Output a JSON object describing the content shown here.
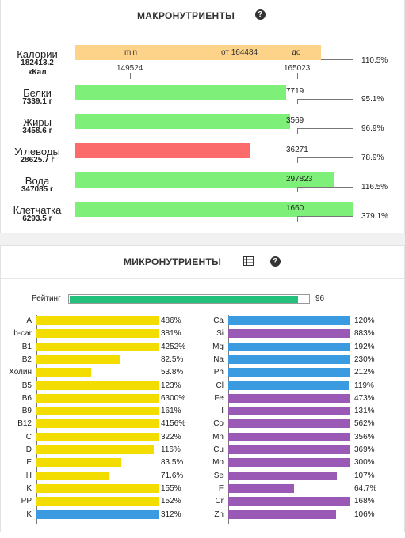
{
  "macro": {
    "title": "МАКРОНУТРИЕНТЫ",
    "calories": {
      "name": "Калории",
      "amount": "182413.2",
      "unit": "кКал",
      "bar_min_label": "min",
      "bar_from_label": "от 164484",
      "bar_to_label": "до",
      "tick_left": "149524",
      "tick_right": "165023",
      "percent": "110.5%",
      "color": "#fdd38a"
    },
    "rows": [
      {
        "name": "Белки",
        "amount": "7339.1 г",
        "target": "7719",
        "percent": "95.1%",
        "fill": 0.951,
        "color": "#7ef07a"
      },
      {
        "name": "Жиры",
        "amount": "3458.6 г",
        "target": "3569",
        "percent": "96.9%",
        "fill": 0.969,
        "color": "#7ef07a"
      },
      {
        "name": "Углеводы",
        "amount": "28625.7 г",
        "target": "36271",
        "percent": "78.9%",
        "fill": 0.789,
        "color": "#fb6b6b"
      },
      {
        "name": "Вода",
        "amount": "347085 г",
        "target": "297823",
        "percent": "116.5%",
        "fill": 1.165,
        "color": "#7ef07a"
      },
      {
        "name": "Клетчатка",
        "amount": "6293.5 г",
        "target": "1660",
        "percent": "379.1%",
        "fill": 3.791,
        "color": "#7ef07a"
      }
    ]
  },
  "micro": {
    "title": "МИКРОНУТРИЕНТЫ",
    "rating": {
      "label": "Рейтинг",
      "value": "96",
      "fill": 0.96,
      "color": "#22c07a"
    },
    "vitamins": [
      {
        "label": "A",
        "percent": "486%",
        "fill": 4.86,
        "color": "#f3dc00"
      },
      {
        "label": "b-car",
        "percent": "381%",
        "fill": 3.81,
        "color": "#f3dc00"
      },
      {
        "label": "B1",
        "percent": "4252%",
        "fill": 42.52,
        "color": "#f3dc00"
      },
      {
        "label": "B2",
        "percent": "82.5%",
        "fill": 0.825,
        "color": "#f3dc00"
      },
      {
        "label": "Холин",
        "percent": "53.8%",
        "fill": 0.538,
        "color": "#f3dc00"
      },
      {
        "label": "B5",
        "percent": "123%",
        "fill": 1.23,
        "color": "#f3dc00"
      },
      {
        "label": "B6",
        "percent": "6300%",
        "fill": 63.0,
        "color": "#f3dc00"
      },
      {
        "label": "B9",
        "percent": "161%",
        "fill": 1.61,
        "color": "#f3dc00"
      },
      {
        "label": "B12",
        "percent": "4156%",
        "fill": 41.56,
        "color": "#f3dc00"
      },
      {
        "label": "C",
        "percent": "322%",
        "fill": 3.22,
        "color": "#f3dc00"
      },
      {
        "label": "D",
        "percent": "116%",
        "fill": 1.16,
        "color": "#f3dc00"
      },
      {
        "label": "E",
        "percent": "83.5%",
        "fill": 0.835,
        "color": "#f3dc00"
      },
      {
        "label": "H",
        "percent": "71.6%",
        "fill": 0.716,
        "color": "#f3dc00"
      },
      {
        "label": "K",
        "percent": "155%",
        "fill": 1.55,
        "color": "#f3dc00"
      },
      {
        "label": "PP",
        "percent": "152%",
        "fill": 1.52,
        "color": "#f3dc00"
      },
      {
        "label": "K",
        "percent": "312%",
        "fill": 3.12,
        "color": "#3a9be0"
      }
    ],
    "minerals": [
      {
        "label": "Ca",
        "percent": "120%",
        "fill": 1.2,
        "color": "#3a9be0"
      },
      {
        "label": "Si",
        "percent": "883%",
        "fill": 8.83,
        "color": "#9b59b6"
      },
      {
        "label": "Mg",
        "percent": "192%",
        "fill": 1.92,
        "color": "#3a9be0"
      },
      {
        "label": "Na",
        "percent": "230%",
        "fill": 2.3,
        "color": "#3a9be0"
      },
      {
        "label": "Ph",
        "percent": "212%",
        "fill": 2.12,
        "color": "#3a9be0"
      },
      {
        "label": "Cl",
        "percent": "119%",
        "fill": 1.19,
        "color": "#3a9be0"
      },
      {
        "label": "Fe",
        "percent": "473%",
        "fill": 4.73,
        "color": "#9b59b6"
      },
      {
        "label": "I",
        "percent": "131%",
        "fill": 1.31,
        "color": "#9b59b6"
      },
      {
        "label": "Co",
        "percent": "562%",
        "fill": 5.62,
        "color": "#9b59b6"
      },
      {
        "label": "Mn",
        "percent": "356%",
        "fill": 3.56,
        "color": "#9b59b6"
      },
      {
        "label": "Cu",
        "percent": "369%",
        "fill": 3.69,
        "color": "#9b59b6"
      },
      {
        "label": "Mo",
        "percent": "300%",
        "fill": 3.0,
        "color": "#9b59b6"
      },
      {
        "label": "Se",
        "percent": "107%",
        "fill": 1.07,
        "color": "#9b59b6"
      },
      {
        "label": "F",
        "percent": "64.7%",
        "fill": 0.647,
        "color": "#9b59b6"
      },
      {
        "label": "Cr",
        "percent": "168%",
        "fill": 1.68,
        "color": "#9b59b6"
      },
      {
        "label": "Zn",
        "percent": "106%",
        "fill": 1.06,
        "color": "#9b59b6"
      }
    ]
  }
}
